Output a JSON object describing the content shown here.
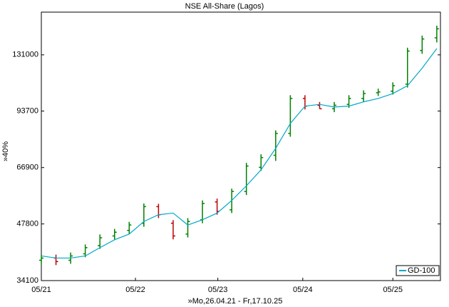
{
  "chart_data": {
    "type": "ohlc",
    "title": "NSE All-Share (Lagos)",
    "y_label": "»40%",
    "x_label": "»Mo,26.04.21 - Fr,17.10.25",
    "log_scale": true,
    "up_color": "#008000",
    "down_color": "#c00000",
    "legend_position": "bottom-right",
    "x": [
      0,
      2,
      4,
      6,
      8,
      10,
      12,
      14,
      16,
      18,
      20,
      22,
      24,
      26,
      28,
      30,
      32,
      34,
      36,
      38,
      40,
      42,
      44,
      46,
      48,
      50,
      52,
      54
    ],
    "open": [
      38500,
      39000,
      38500,
      40000,
      42000,
      44500,
      46000,
      48000,
      53000,
      48000,
      45000,
      49000,
      54500,
      52000,
      58000,
      67000,
      72000,
      82000,
      101000,
      97000,
      95000,
      97500,
      101000,
      104500,
      105500,
      110000,
      134500,
      145000
    ],
    "high": [
      39800,
      39800,
      40300,
      42300,
      44900,
      46400,
      48400,
      54000,
      53900,
      48900,
      49500,
      55000,
      55600,
      59000,
      68800,
      72400,
      83500,
      103000,
      103000,
      98900,
      98900,
      103000,
      106000,
      107100,
      111200,
      136700,
      146900,
      155900
    ],
    "low": [
      37700,
      37400,
      37700,
      39200,
      41200,
      43600,
      45000,
      47000,
      49500,
      43600,
      44100,
      48000,
      50500,
      51000,
      56800,
      65600,
      69600,
      80400,
      94600,
      95000,
      93100,
      95500,
      99000,
      102500,
      103400,
      107800,
      131800,
      141100
    ],
    "close": [
      39000,
      38200,
      39500,
      41500,
      44000,
      45500,
      47500,
      53000,
      50500,
      44500,
      48500,
      54000,
      51500,
      58000,
      67500,
      71000,
      82000,
      101000,
      96500,
      95000,
      97000,
      101000,
      104000,
      105000,
      109000,
      134000,
      144000,
      153000
    ],
    "series": [
      {
        "name": "GD-100",
        "color": "#00a8c8",
        "values": [
          39500,
          39000,
          39000,
          39500,
          41500,
          43500,
          45000,
          48500,
          50500,
          51000,
          47500,
          49000,
          51000,
          55000,
          60000,
          66000,
          75000,
          87000,
          96500,
          97500,
          96000,
          96500,
          99000,
          101000,
          104000,
          109000,
          121000,
          136000
        ]
      }
    ],
    "xlim": [
      0,
      54.5
    ],
    "xticks": [
      {
        "value": 0,
        "label": "05/21"
      },
      {
        "value": 12.85,
        "label": "05/22"
      },
      {
        "value": 24.1,
        "label": "05/23"
      },
      {
        "value": 35.7,
        "label": "05/24"
      },
      {
        "value": 48,
        "label": "05/25"
      }
    ],
    "ylim": [
      34100,
      169000
    ],
    "yticks": [
      34100,
      47800,
      66900,
      93700,
      131000
    ]
  }
}
